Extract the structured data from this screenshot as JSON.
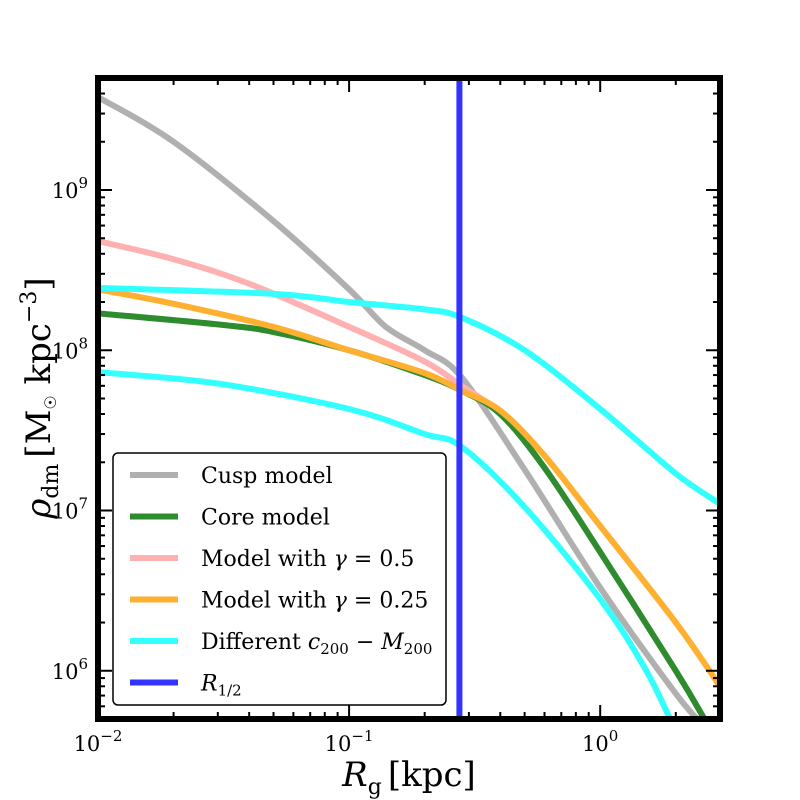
{
  "chart_data": {
    "type": "line",
    "xscale": "log",
    "yscale": "log",
    "xlim": [
      0.01,
      3.0
    ],
    "ylim": [
      500000,
      5000000000
    ],
    "xlabel": {
      "symbol": "R",
      "sub": "g",
      "unit": "[kpc]"
    },
    "ylabel": {
      "symbol": "ρ",
      "sub": "dm",
      "unit_pre": "[M",
      "unit_sun": "☉",
      "unit_mid": " kpc",
      "unit_exp": "−3",
      "unit_post": "]"
    },
    "x_ticks": [
      {
        "value": 0.01,
        "base": "10",
        "exp": "−2"
      },
      {
        "value": 0.1,
        "base": "10",
        "exp": "−1"
      },
      {
        "value": 1,
        "base": "10",
        "exp": "0"
      }
    ],
    "y_ticks": [
      {
        "value": 1000000,
        "base": "10",
        "exp": "6"
      },
      {
        "value": 10000000,
        "base": "10",
        "exp": "7"
      },
      {
        "value": 100000000,
        "base": "10",
        "exp": "8"
      },
      {
        "value": 1000000000,
        "base": "10",
        "exp": "9"
      }
    ],
    "legend": {
      "position": "lower-left",
      "entries": [
        {
          "label": "Cusp model",
          "color": "#b0b0b0"
        },
        {
          "label": "Core model",
          "color": "#2e8b2e"
        },
        {
          "label": "Model with γ = 0.5",
          "color": "#ffb0b0"
        },
        {
          "label": "Model with γ = 0.25",
          "color": "#ffb030"
        },
        {
          "label": "Different c200 − M200",
          "color": "#33ffff"
        },
        {
          "label": "R1/2",
          "color": "#3333ff"
        }
      ]
    },
    "series": [
      {
        "name": "Cusp model",
        "color": "#b0b0b0",
        "x": [
          0.01,
          0.02,
          0.05,
          0.1,
          0.14,
          0.2,
          0.28,
          0.5,
          1.0,
          2.0,
          2.6
        ],
        "y": [
          3800000000,
          2000000000,
          640000000,
          240000000,
          140000000,
          100000000,
          68000000,
          18000000,
          3300000,
          720000,
          450000
        ]
      },
      {
        "name": "Core model",
        "color": "#2e8b2e",
        "x": [
          0.01,
          0.03,
          0.05,
          0.1,
          0.2,
          0.28,
          0.4,
          0.6,
          1.0,
          2.0,
          2.6
        ],
        "y": [
          170000000,
          145000000,
          130000000,
          100000000,
          70000000,
          56000000,
          40000000,
          18500000,
          5500000,
          1000000,
          500000
        ]
      },
      {
        "name": "Model with γ = 0.5",
        "color": "#ffb0b0",
        "x": [
          0.01,
          0.02,
          0.04,
          0.1,
          0.2,
          0.28,
          0.35
        ],
        "y": [
          480000000,
          370000000,
          260000000,
          140000000,
          85000000,
          60000000,
          48000000
        ]
      },
      {
        "name": "Model with γ = 0.25",
        "color": "#ffb030",
        "x": [
          0.01,
          0.02,
          0.05,
          0.1,
          0.2,
          0.28,
          0.4,
          0.6,
          1.0,
          2.0,
          3.0
        ],
        "y": [
          240000000,
          195000000,
          140000000,
          100000000,
          72000000,
          56000000,
          42000000,
          22000000,
          8000000,
          2000000,
          800000
        ]
      },
      {
        "name": "Different c200 − M200 (upper)",
        "color": "#33ffff",
        "x": [
          0.01,
          0.05,
          0.1,
          0.2,
          0.28,
          0.5,
          1.0,
          2.0,
          3.0
        ],
        "y": [
          245000000,
          225000000,
          200000000,
          180000000,
          160000000,
          100000000,
          43000000,
          17000000,
          11000000
        ]
      },
      {
        "name": "Different c200 − M200 (lower)",
        "color": "#33ffff",
        "x": [
          0.01,
          0.03,
          0.1,
          0.2,
          0.28,
          0.5,
          1.0,
          1.5,
          1.9
        ],
        "y": [
          73000000,
          62000000,
          43000000,
          30000000,
          25000000,
          10500000,
          2800000,
          1050000,
          500000
        ]
      }
    ],
    "vlines": [
      {
        "name": "R1/2",
        "x": 0.275,
        "color": "#3333ff"
      }
    ]
  }
}
